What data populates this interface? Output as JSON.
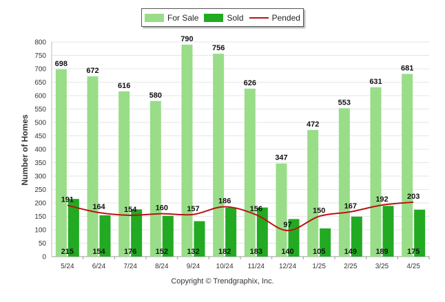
{
  "chart_data": {
    "type": "bar",
    "categories": [
      "5/24",
      "6/24",
      "7/24",
      "8/24",
      "9/24",
      "10/24",
      "11/24",
      "12/24",
      "1/25",
      "2/25",
      "3/25",
      "4/25"
    ],
    "series": [
      {
        "name": "For Sale",
        "kind": "bar",
        "color": "#99dd88",
        "values": [
          698,
          672,
          616,
          580,
          790,
          756,
          626,
          347,
          472,
          553,
          631,
          681
        ]
      },
      {
        "name": "Sold",
        "kind": "bar",
        "color": "#22aa22",
        "values": [
          215,
          154,
          176,
          152,
          132,
          182,
          183,
          140,
          105,
          149,
          189,
          175
        ]
      },
      {
        "name": "Pended",
        "kind": "line",
        "color": "#bb1111",
        "values": [
          191,
          164,
          154,
          160,
          157,
          186,
          156,
          97,
          150,
          167,
          192,
          203
        ]
      }
    ],
    "ylabel": "Number of Homes",
    "ylim": [
      0,
      800
    ],
    "yticks": [
      0,
      50,
      100,
      150,
      200,
      250,
      300,
      350,
      400,
      450,
      500,
      550,
      600,
      650,
      700,
      750,
      800
    ],
    "grid": true,
    "legend_position": "top-center"
  },
  "footer": {
    "copyright": "Copyright © Trendgraphix, Inc."
  }
}
